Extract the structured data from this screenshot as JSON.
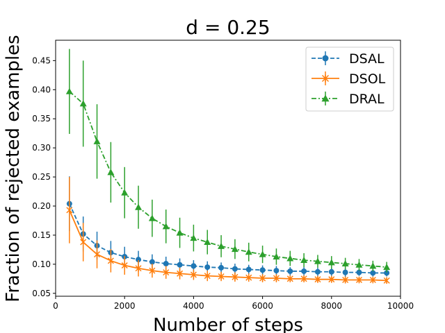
{
  "chart_data": {
    "type": "line",
    "title": "d = 0.25",
    "xlabel": "Number of steps",
    "ylabel": "Fraction of rejected examples",
    "xlim": [
      0,
      10000
    ],
    "ylim": [
      0.045,
      0.485
    ],
    "xticks": [
      0,
      2000,
      4000,
      6000,
      8000,
      10000
    ],
    "xtick_labels": [
      "0",
      "2000",
      "4000",
      "6000",
      "8000",
      "10000"
    ],
    "yticks": [
      0.05,
      0.1,
      0.15,
      0.2,
      0.25,
      0.3,
      0.35,
      0.4,
      0.45
    ],
    "ytick_labels": [
      "0.05",
      "0.10",
      "0.15",
      "0.20",
      "0.25",
      "0.30",
      "0.35",
      "0.40",
      "0.45"
    ],
    "grid": false,
    "legend_position": "top-right",
    "x": [
      400,
      800,
      1200,
      1600,
      2000,
      2400,
      2800,
      3200,
      3600,
      4000,
      4400,
      4800,
      5200,
      5600,
      6000,
      6400,
      6800,
      7200,
      7600,
      8000,
      8400,
      8800,
      9200,
      9600
    ],
    "series": [
      {
        "name": "DSAL",
        "color": "#1f77b4",
        "marker": "circle",
        "linestyle": "dashed",
        "values": [
          0.204,
          0.152,
          0.132,
          0.12,
          0.113,
          0.108,
          0.104,
          0.101,
          0.099,
          0.097,
          0.095,
          0.094,
          0.092,
          0.091,
          0.09,
          0.089,
          0.088,
          0.088,
          0.087,
          0.087,
          0.086,
          0.086,
          0.085,
          0.085
        ],
        "errors": [
          0.047,
          0.03,
          0.024,
          0.02,
          0.017,
          0.015,
          0.013,
          0.012,
          0.011,
          0.01,
          0.01,
          0.009,
          0.009,
          0.008,
          0.008,
          0.008,
          0.007,
          0.007,
          0.007,
          0.007,
          0.007,
          0.006,
          0.006,
          0.006
        ]
      },
      {
        "name": "DSOL",
        "color": "#ff7f0e",
        "marker": "x",
        "linestyle": "solid",
        "values": [
          0.193,
          0.138,
          0.117,
          0.106,
          0.098,
          0.093,
          0.089,
          0.086,
          0.084,
          0.082,
          0.08,
          0.079,
          0.078,
          0.077,
          0.076,
          0.076,
          0.075,
          0.075,
          0.074,
          0.074,
          0.073,
          0.073,
          0.073,
          0.072
        ],
        "errors": [
          0.057,
          0.033,
          0.024,
          0.02,
          0.016,
          0.014,
          0.012,
          0.011,
          0.01,
          0.009,
          0.009,
          0.008,
          0.008,
          0.007,
          0.007,
          0.007,
          0.006,
          0.006,
          0.006,
          0.006,
          0.006,
          0.005,
          0.005,
          0.005
        ]
      },
      {
        "name": "DRAL",
        "color": "#2ca02c",
        "marker": "triangle",
        "linestyle": "dashdot",
        "values": [
          0.397,
          0.376,
          0.311,
          0.258,
          0.223,
          0.198,
          0.179,
          0.165,
          0.154,
          0.145,
          0.138,
          0.131,
          0.126,
          0.121,
          0.117,
          0.113,
          0.11,
          0.107,
          0.105,
          0.103,
          0.101,
          0.099,
          0.097,
          0.095
        ],
        "errors": [
          0.073,
          0.074,
          0.064,
          0.052,
          0.044,
          0.037,
          0.032,
          0.029,
          0.026,
          0.023,
          0.021,
          0.019,
          0.017,
          0.016,
          0.015,
          0.014,
          0.013,
          0.012,
          0.011,
          0.011,
          0.01,
          0.01,
          0.009,
          0.009
        ]
      }
    ]
  }
}
